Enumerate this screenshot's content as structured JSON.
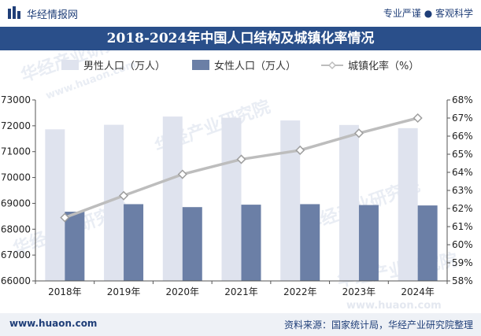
{
  "header": {
    "brand": "华经情报网",
    "slogan": "专业严谨 ● 客观科学"
  },
  "footer": {
    "url": "www.huaon.com",
    "source": "资料来源：国家统计局，华经产业研究院整理"
  },
  "watermark": {
    "name": "华经产业研究院",
    "url": "www.huaon.com"
  },
  "colors": {
    "male": "#dfe3ee",
    "female": "#6b7fa6",
    "urbanization": "#bdbdbd",
    "header_band": "#2a4f8a"
  },
  "chart_data": {
    "type": "bar",
    "title": "2018-2024年中国人口结构及城镇化率情况",
    "categories": [
      "2018年",
      "2019年",
      "2020年",
      "2021年",
      "2022年",
      "2023年",
      "2024年"
    ],
    "series": [
      {
        "name": "男性人口（万人）",
        "kind": "bar",
        "axis": "left",
        "values": [
          71864,
          72039,
          72357,
          72311,
          72206,
          72032,
          71909
        ]
      },
      {
        "name": "女性人口（万人）",
        "kind": "bar",
        "axis": "left",
        "values": [
          68677,
          68969,
          68855,
          68949,
          68969,
          68935,
          68919
        ]
      },
      {
        "name": "城镇化率（%）",
        "kind": "line",
        "axis": "right",
        "values": [
          61.5,
          62.71,
          63.89,
          64.72,
          65.22,
          66.16,
          67.0
        ]
      }
    ],
    "y_left": {
      "min": 66000,
      "max": 73000,
      "ticks": [
        66000,
        67000,
        68000,
        69000,
        70000,
        71000,
        72000,
        73000
      ]
    },
    "y_right": {
      "min": 58,
      "max": 68,
      "ticks": [
        "58%",
        "59%",
        "60%",
        "61%",
        "62%",
        "63%",
        "64%",
        "65%",
        "66%",
        "67%",
        "68%"
      ]
    },
    "legend_position": "top",
    "grid": false
  }
}
